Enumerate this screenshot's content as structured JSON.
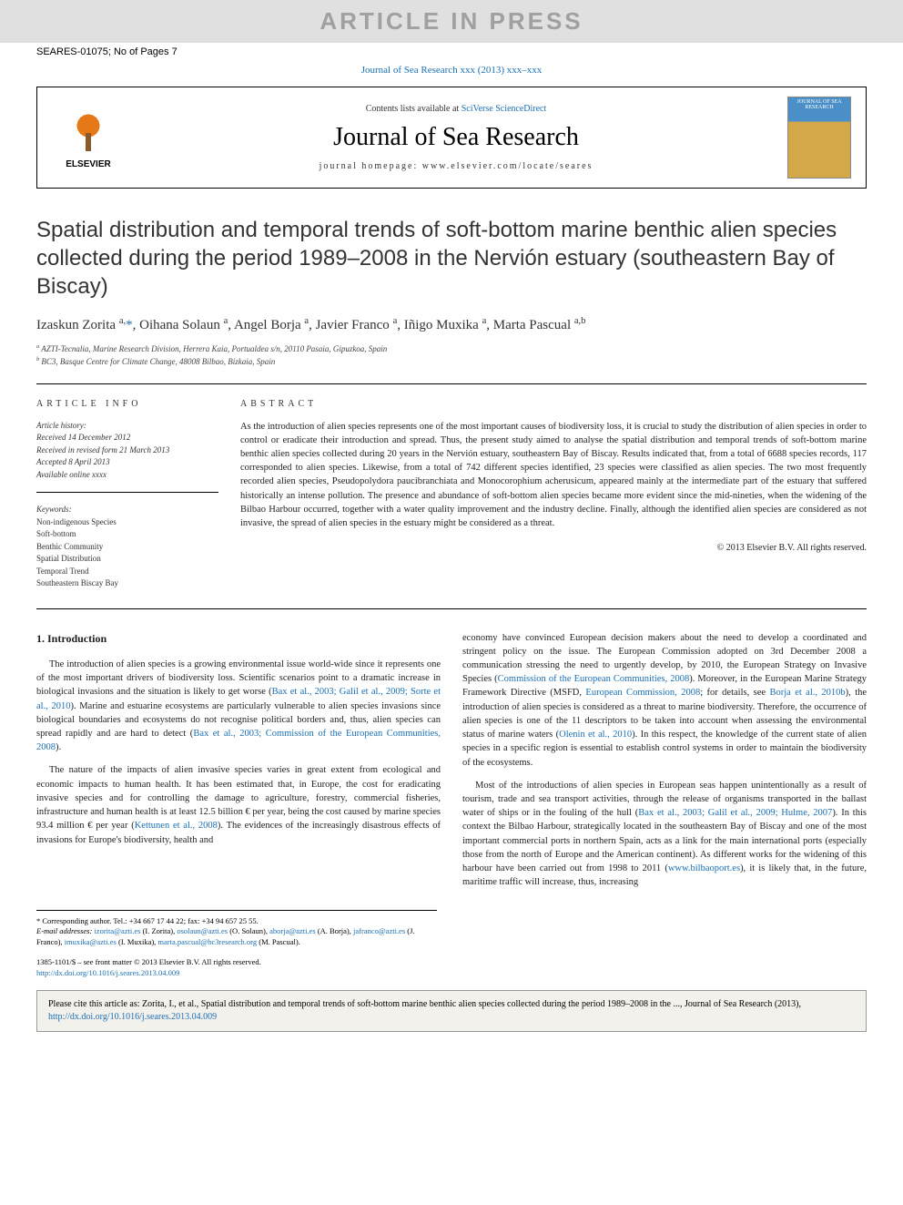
{
  "watermark": "ARTICLE IN PRESS",
  "article_id": "SEARES-01075; No of Pages 7",
  "journal_ref_link": "Journal of Sea Research xxx (2013) xxx–xxx",
  "header": {
    "contents_prefix": "Contents lists available at ",
    "contents_link": "SciVerse ScienceDirect",
    "journal_name": "Journal of Sea Research",
    "homepage_prefix": "journal homepage: ",
    "homepage": "www.elsevier.com/locate/seares",
    "elsevier": "ELSEVIER",
    "cover_text": "JOURNAL OF SEA RESEARCH"
  },
  "title": "Spatial distribution and temporal trends of soft-bottom marine benthic alien species collected during the period 1989–2008 in the Nervión estuary (southeastern Bay of Biscay)",
  "authors_html": "Izaskun Zorita <sup>a,</sup><span class='corr'>*</span>, Oihana Solaun <sup>a</sup>, Angel Borja <sup>a</sup>, Javier Franco <sup>a</sup>, Iñigo Muxika <sup>a</sup>, Marta Pascual <sup>a,b</sup>",
  "affiliations": {
    "a": "AZTI-Tecnalia, Marine Research Division, Herrera Kaia, Portualdea s/n, 20110 Pasaia, Gipuzkoa, Spain",
    "b": "BC3, Basque Centre for Climate Change, 48008 Bilbao, Bizkaia, Spain"
  },
  "article_info_label": "ARTICLE INFO",
  "abstract_label": "ABSTRACT",
  "history": {
    "label": "Article history:",
    "received": "Received 14 December 2012",
    "revised": "Received in revised form 21 March 2013",
    "accepted": "Accepted 8 April 2013",
    "online": "Available online xxxx"
  },
  "keywords": {
    "label": "Keywords:",
    "items": [
      "Non-indigenous Species",
      "Soft-bottom",
      "Benthic Community",
      "Spatial Distribution",
      "Temporal Trend",
      "Southeastern Biscay Bay"
    ]
  },
  "abstract": "As the introduction of alien species represents one of the most important causes of biodiversity loss, it is crucial to study the distribution of alien species in order to control or eradicate their introduction and spread. Thus, the present study aimed to analyse the spatial distribution and temporal trends of soft-bottom marine benthic alien species collected during 20 years in the Nervión estuary, southeastern Bay of Biscay. Results indicated that, from a total of 6688 species records, 117 corresponded to alien species. Likewise, from a total of 742 different species identified, 23 species were classified as alien species. The two most frequently recorded alien species, Pseudopolydora paucibranchiata and Monocorophium acherusicum, appeared mainly at the intermediate part of the estuary that suffered historically an intense pollution. The presence and abundance of soft-bottom alien species became more evident since the mid-nineties, when the widening of the Bilbao Harbour occurred, together with a water quality improvement and the industry decline. Finally, although the identified alien species are considered as not invasive, the spread of alien species in the estuary might be considered as a threat.",
  "copyright": "© 2013 Elsevier B.V. All rights reserved.",
  "intro_heading": "1. Introduction",
  "intro_p1": "The introduction of alien species is a growing environmental issue world-wide since it represents one of the most important drivers of biodiversity loss. Scientific scenarios point to a dramatic increase in biological invasions and the situation is likely to get worse (",
  "intro_p1_cite": "Bax et al., 2003; Galil et al., 2009; Sorte et al., 2010",
  "intro_p1b": "). Marine and estuarine ecosystems are particularly vulnerable to alien species invasions since biological boundaries and ecosystems do not recognise political borders and, thus, alien species can spread rapidly and are hard to detect (",
  "intro_p1_cite2": "Bax et al., 2003; Commission of the European Communities, 2008",
  "intro_p1c": ").",
  "intro_p2a": "The nature of the impacts of alien invasive species varies in great extent from ecological and economic impacts to human health. It has been estimated that, in Europe, the cost for eradicating invasive species and for controlling the damage to agriculture, forestry, commercial fisheries, infrastructure and human health is at least 12.5 billion € per year, being the cost caused by marine species 93.4 million € per year (",
  "intro_p2_cite": "Kettunen et al., 2008",
  "intro_p2b": "). The evidences of the increasingly disastrous effects of invasions for Europe's biodiversity, health and",
  "col2_p1a": "economy have convinced European decision makers about the need to develop a coordinated and stringent policy on the issue. The European Commission adopted on 3rd December 2008 a communication stressing the need to urgently develop, by 2010, the European Strategy on Invasive Species (",
  "col2_p1_cite1": "Commission of the European Communities, 2008",
  "col2_p1b": "). Moreover, in the European Marine Strategy Framework Directive (MSFD, ",
  "col2_p1_cite2": "European Commission, 2008",
  "col2_p1c": "; for details, see ",
  "col2_p1_cite3": "Borja et al., 2010b",
  "col2_p1d": "), the introduction of alien species is considered as a threat to marine biodiversity. Therefore, the occurrence of alien species is one of the 11 descriptors to be taken into account when assessing the environmental status of marine waters (",
  "col2_p1_cite4": "Olenin et al., 2010",
  "col2_p1e": "). In this respect, the knowledge of the current state of alien species in a specific region is essential to establish control systems in order to maintain the biodiversity of the ecosystems.",
  "col2_p2a": "Most of the introductions of alien species in European seas happen unintentionally as a result of tourism, trade and sea transport activities, through the release of organisms transported in the ballast water of ships or in the fouling of the hull (",
  "col2_p2_cite1": "Bax et al., 2003; Galil et al., 2009; Hulme, 2007",
  "col2_p2b": "). In this context the Bilbao Harbour, strategically located in the southeastern Bay of Biscay and one of the most important commercial ports in northern Spain, acts as a link for the main international ports (especially those from the north of Europe and the American continent). As different works for the widening of this harbour have been carried out from 1998 to 2011 (",
  "col2_p2_link": "www.bilbaoport.es",
  "col2_p2c": "), it is likely that, in the future, maritime traffic will increase, thus, increasing",
  "footnote": {
    "corr": "* Corresponding author. Tel.: +34 667 17 44 22; fax: +34 94 657 25 55.",
    "emails_label": "E-mail addresses: ",
    "emails": [
      {
        "addr": "izorita@azti.es",
        "who": "(I. Zorita)"
      },
      {
        "addr": "osolaun@azti.es",
        "who": "(O. Solaun)"
      },
      {
        "addr": "aborja@azti.es",
        "who": "(A. Borja)"
      },
      {
        "addr": "jafranco@azti.es",
        "who": "(J. Franco)"
      },
      {
        "addr": "imuxika@azti.es",
        "who": "(I. Muxika)"
      },
      {
        "addr": "marta.pascual@bc3research.org",
        "who": "(M. Pascual)"
      }
    ]
  },
  "bottom": {
    "issn": "1385-1101/$ – see front matter © 2013 Elsevier B.V. All rights reserved.",
    "doi": "http://dx.doi.org/10.1016/j.seares.2013.04.009"
  },
  "citation_box": {
    "text": "Please cite this article as: Zorita, I., et al., Spatial distribution and temporal trends of soft-bottom marine benthic alien species collected during the period 1989–2008 in the ..., Journal of Sea Research (2013), ",
    "link": "http://dx.doi.org/10.1016/j.seares.2013.04.009"
  },
  "colors": {
    "link": "#1a6fb5",
    "watermark_bg": "#e0e0e0",
    "watermark_text": "#a0a0a0",
    "elsevier_orange": "#e67817",
    "citation_bg": "#f3f1ec"
  }
}
